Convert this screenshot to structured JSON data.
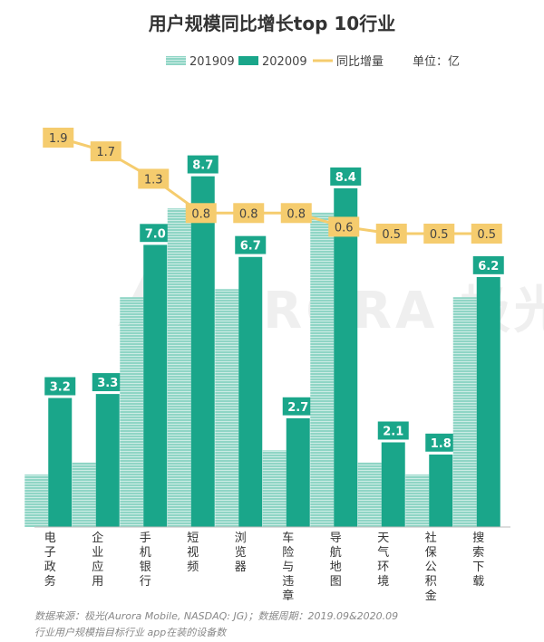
{
  "chart_data": {
    "type": "bar",
    "title": "用户规模同比增长top 10行业",
    "unit_label": "单位：亿",
    "categories": [
      "电子政务",
      "企业应用",
      "手机银行",
      "短视频",
      "浏览器",
      "车险与违章",
      "导航地图",
      "天气环境",
      "社保公积金",
      "搜索下载"
    ],
    "series": [
      {
        "name": "201909",
        "values": [
          1.3,
          1.6,
          5.7,
          7.9,
          5.9,
          1.9,
          7.8,
          1.6,
          1.3,
          5.7
        ],
        "color": "#8fd5c5",
        "type": "bar"
      },
      {
        "name": "202009",
        "values": [
          3.2,
          3.3,
          7.0,
          8.7,
          6.7,
          2.7,
          8.4,
          2.1,
          1.8,
          6.2
        ],
        "color": "#1aa68a",
        "type": "bar"
      },
      {
        "name": "同比增量",
        "values": [
          1.9,
          1.7,
          1.3,
          0.8,
          0.8,
          0.8,
          0.6,
          0.5,
          0.5,
          0.5
        ],
        "color": "#f5cc6e",
        "type": "line"
      }
    ],
    "data_labels_2020": [
      "3.2",
      "3.3",
      "7.0",
      "8.7",
      "6.7",
      "2.7",
      "8.4",
      "2.1",
      "1.8",
      "6.2"
    ],
    "data_labels_growth": [
      "1.9",
      "1.7",
      "1.3",
      "0.8",
      "0.8",
      "0.8",
      "0.6",
      "0.5",
      "0.5",
      "0.5"
    ],
    "bar_ylim": [
      0,
      10.6
    ],
    "line_ylim": [
      -3.5,
      2.4
    ],
    "legend_position": "top-right",
    "grid": false
  },
  "watermark": "AURORA 极光",
  "footnotes": [
    "数据来源：极光(Aurora Mobile, NASDAQ: JG)；数据周期：2019.09&2020.09",
    "行业用户规模指目标行业 app在装的设备数"
  ]
}
